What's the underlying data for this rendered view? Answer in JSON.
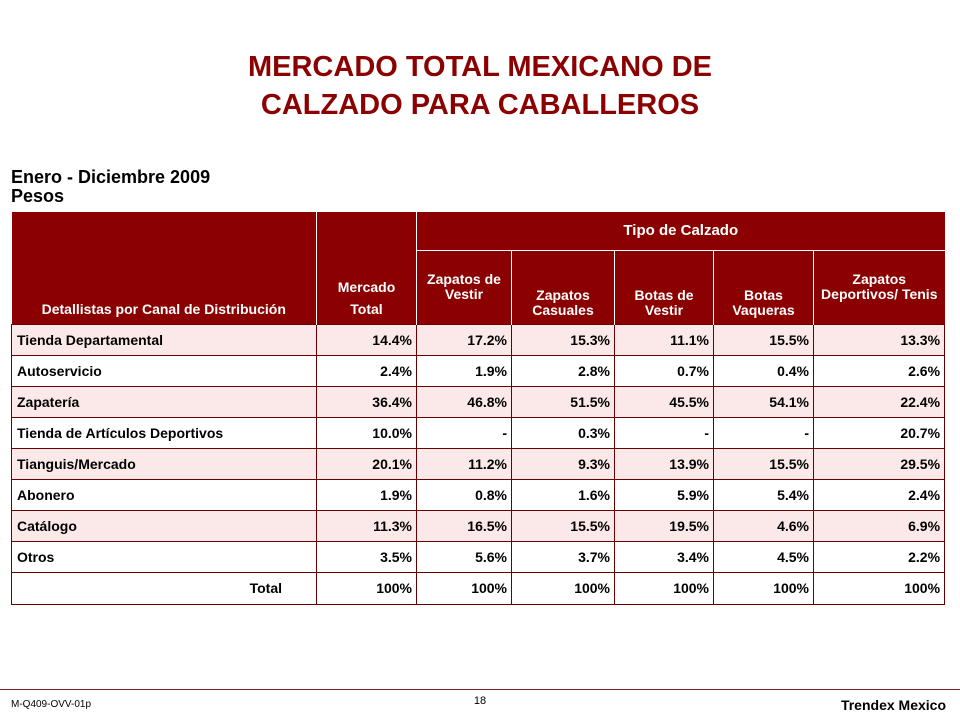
{
  "title": {
    "line1": "MERCADO TOTAL MEXICANO DE",
    "line2": "CALZADO PARA CABALLEROS"
  },
  "subtitle": {
    "line1": "Enero - Diciembre 2009",
    "line2": "Pesos"
  },
  "table": {
    "header": {
      "channel": "Detallistas por Canal de Distribución",
      "market": "Mercado Total",
      "group": "Tipo de Calzado",
      "types": [
        "Zapatos de Vestir",
        "Zapatos Casuales",
        "Botas de Vestir",
        "Botas Vaqueras",
        "Zapatos Deportivos/ Tenis"
      ]
    },
    "rows": [
      {
        "label": "Tienda Departamental",
        "values": [
          "14.4%",
          "17.2%",
          "15.3%",
          "11.1%",
          "15.5%",
          "13.3%"
        ]
      },
      {
        "label": "Autoservicio",
        "values": [
          "2.4%",
          "1.9%",
          "2.8%",
          "0.7%",
          "0.4%",
          "2.6%"
        ]
      },
      {
        "label": "Zapatería",
        "values": [
          "36.4%",
          "46.8%",
          "51.5%",
          "45.5%",
          "54.1%",
          "22.4%"
        ]
      },
      {
        "label": "Tienda de Artículos Deportivos",
        "values": [
          "10.0%",
          "-",
          "0.3%",
          "-",
          "-",
          "20.7%"
        ]
      },
      {
        "label": "Tianguis/Mercado",
        "values": [
          "20.1%",
          "11.2%",
          "9.3%",
          "13.9%",
          "15.5%",
          "29.5%"
        ]
      },
      {
        "label": "Abonero",
        "values": [
          "1.9%",
          "0.8%",
          "1.6%",
          "5.9%",
          "5.4%",
          "2.4%"
        ]
      },
      {
        "label": "Catálogo",
        "values": [
          "11.3%",
          "16.5%",
          "15.5%",
          "19.5%",
          "4.6%",
          "6.9%"
        ]
      },
      {
        "label": "Otros",
        "values": [
          "3.5%",
          "5.6%",
          "3.7%",
          "3.4%",
          "4.5%",
          "2.2%"
        ]
      }
    ],
    "total": {
      "label": "Total",
      "values": [
        "100%",
        "100%",
        "100%",
        "100%",
        "100%",
        "100%"
      ]
    }
  },
  "footer": {
    "code": "M-Q409-OVV-01p",
    "page": "18",
    "brand": "Trendex Mexico"
  },
  "colors": {
    "header_bg": "#8b0000",
    "title": "#8b0000",
    "row_shade": "#fbe9e9"
  }
}
